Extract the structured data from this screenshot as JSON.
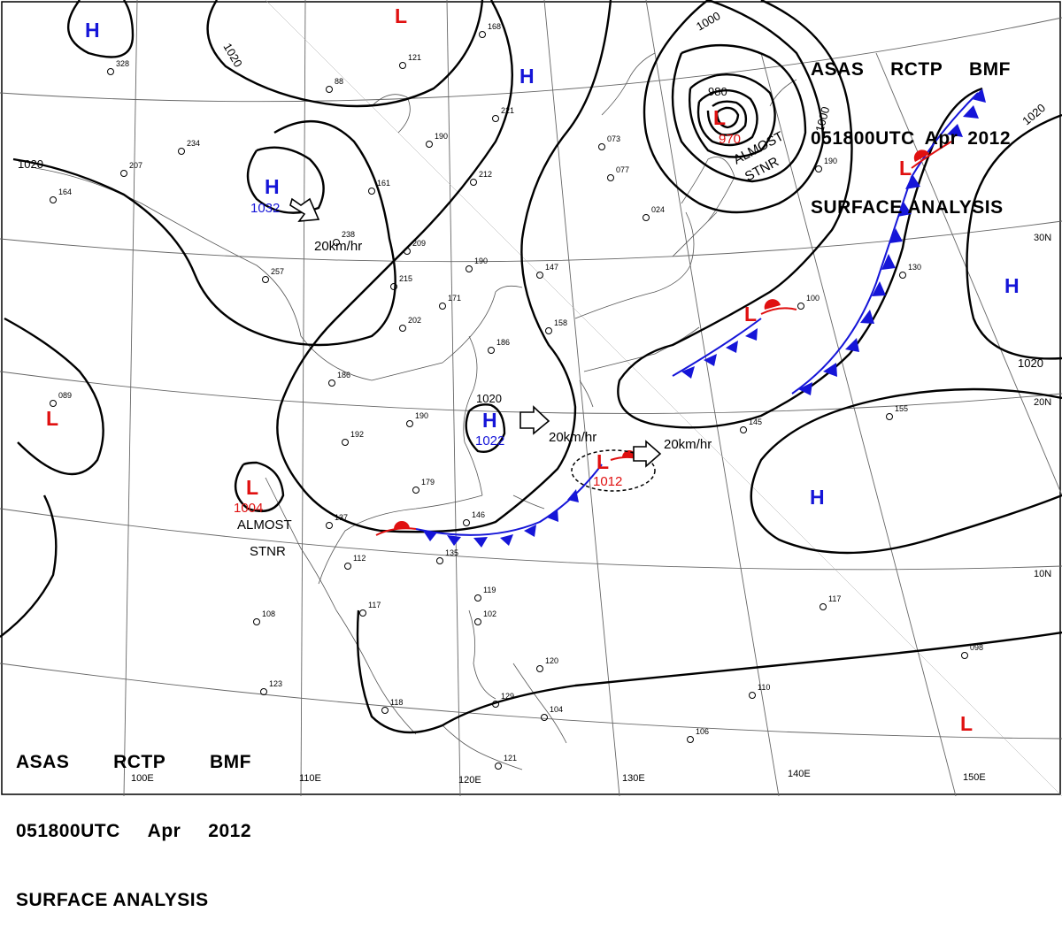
{
  "title": {
    "line1": [
      "ASAS",
      "RCTP",
      "BMF"
    ],
    "line2": [
      "051800UTC",
      "Apr",
      "2012"
    ],
    "line3": "SURFACE ANALYSIS"
  },
  "colors": {
    "high": "#1515d8",
    "low": "#e01010",
    "isobar": "#000000",
    "coast": "#555555",
    "grid": "#666666"
  },
  "latitude_labels": [
    "30N",
    "20N",
    "10N"
  ],
  "longitude_labels": [
    "110E",
    "120E",
    "130E",
    "140E",
    "150E",
    "100E"
  ],
  "isobar_labels": [
    "1020",
    "1020",
    "1020",
    "1020",
    "1000",
    "1000",
    "980",
    "1020"
  ],
  "pressure_centers": [
    {
      "type": "H",
      "value": ""
    },
    {
      "type": "L",
      "value": ""
    },
    {
      "type": "H",
      "value": ""
    },
    {
      "type": "H",
      "value": "1032"
    },
    {
      "type": "L",
      "value": "970"
    },
    {
      "type": "L",
      "value": ""
    },
    {
      "type": "L",
      "value": ""
    },
    {
      "type": "H",
      "value": ""
    },
    {
      "type": "L",
      "value": ""
    },
    {
      "type": "H",
      "value": "1022"
    },
    {
      "type": "L",
      "value": "1004"
    },
    {
      "type": "L",
      "value": "1012"
    },
    {
      "type": "H",
      "value": ""
    },
    {
      "type": "L",
      "value": ""
    }
  ],
  "annotations": {
    "almost_stnr_ne": [
      "ALMOST",
      "STNR"
    ],
    "almost_stnr_sw": [
      "ALMOST",
      "STNR"
    ],
    "motion_1": "20km/hr",
    "motion_2": "20km/hr",
    "motion_3": "20km/hr"
  },
  "station_numbers": [
    "328",
    "121",
    "168",
    "88",
    "221",
    "190",
    "212",
    "234",
    "207",
    "164",
    "161",
    "238",
    "209",
    "215",
    "171",
    "190",
    "147",
    "186",
    "158",
    "202",
    "186",
    "190",
    "192",
    "179",
    "146",
    "137",
    "112",
    "135",
    "117",
    "108",
    "123",
    "118",
    "119",
    "102",
    "120",
    "129",
    "104",
    "145",
    "155",
    "130",
    "100",
    "117",
    "098",
    "110",
    "106",
    "121",
    "077",
    "073",
    "024",
    "190",
    "089",
    "257"
  ]
}
